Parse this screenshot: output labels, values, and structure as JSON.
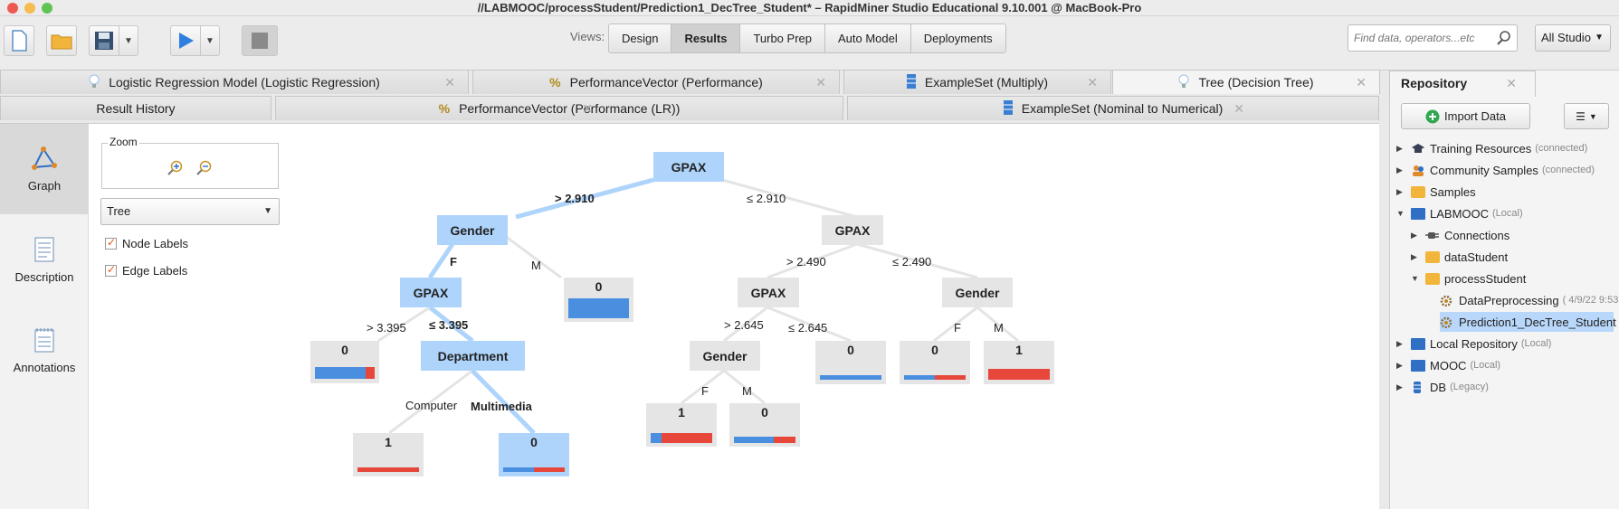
{
  "window": {
    "title": "//LABMOOC/processStudent/Prediction1_DecTree_Student* – RapidMiner Studio Educational 9.10.001 @ MacBook-Pro"
  },
  "toolbar": {
    "views_label": "Views:",
    "views": [
      "Design",
      "Results",
      "Turbo Prep",
      "Auto Model",
      "Deployments"
    ],
    "active_view": "Results",
    "search_placeholder": "Find data, operators...etc",
    "scope": "All Studio"
  },
  "tabs_row1": [
    {
      "label": "Logistic Regression Model (Logistic Regression)",
      "icon": "lightbulb-icon"
    },
    {
      "label": "PerformanceVector (Performance)",
      "icon": "percent-icon"
    },
    {
      "label": "ExampleSet (Multiply)",
      "icon": "table-icon"
    },
    {
      "label": "Tree (Decision Tree)",
      "icon": "lightbulb-icon",
      "active": true
    }
  ],
  "tabs_row2": [
    {
      "label": "Result History",
      "icon": ""
    },
    {
      "label": "PerformanceVector (Performance (LR))",
      "icon": "percent-icon"
    },
    {
      "label": "ExampleSet (Nominal to Numerical)",
      "icon": "table-icon"
    }
  ],
  "sidebar": {
    "items": [
      {
        "label": "Graph",
        "icon": "graph-icon",
        "active": true
      },
      {
        "label": "Description",
        "icon": "description-icon"
      },
      {
        "label": "Annotations",
        "icon": "annotations-icon"
      }
    ]
  },
  "controls": {
    "zoom_label": "Zoom",
    "layout_value": "Tree",
    "node_labels": "Node Labels",
    "edge_labels": "Edge Labels",
    "node_labels_checked": true,
    "edge_labels_checked": true
  },
  "tree": {
    "nodes": {
      "root": "GPAX",
      "n_gender_l": "Gender",
      "n_gpax_r": "GPAX",
      "n_gpax_ll": "GPAX",
      "n_dept": "Department",
      "n_gpax_rl": "GPAX",
      "n_gender_rr": "Gender",
      "n_gender_rll": "Gender"
    },
    "edges": {
      "e_gt2910": "> 2.910",
      "e_le2910": "≤ 2.910",
      "e_f1": "F",
      "e_m1": "M",
      "e_gt2490": "> 2.490",
      "e_le2490": "≤ 2.490",
      "e_gt3395": "> 3.395",
      "e_le3395": "≤ 3.395",
      "e_gt2645": "> 2.645",
      "e_le2645": "≤ 2.645",
      "e_f2": "F",
      "e_m2": "M",
      "e_computer": "Computer",
      "e_multimedia": "Multimedia",
      "e_f3": "F",
      "e_m3": "M"
    },
    "leaves": {
      "l_m0": {
        "label": "0",
        "blue_fraction": 1.0
      },
      "l_3395": {
        "label": "0",
        "blue_fraction": 0.85
      },
      "l_computer": {
        "label": "1",
        "blue_fraction": 0.0
      },
      "l_multimedia": {
        "label": "0",
        "blue_fraction": 0.5
      },
      "l_f1": {
        "label": "1",
        "blue_fraction": 0.18
      },
      "l_m1": {
        "label": "0",
        "blue_fraction": 0.65
      },
      "l_le2645": {
        "label": "0",
        "blue_fraction": 1.0
      },
      "l_gf": {
        "label": "0",
        "blue_fraction": 0.5
      },
      "l_gm": {
        "label": "1",
        "blue_fraction": 0.0
      }
    }
  },
  "repository": {
    "title": "Repository",
    "import_label": "Import Data",
    "items": [
      {
        "label": "Training Resources",
        "sub": "(connected)",
        "icon": "graduation-cap-icon"
      },
      {
        "label": "Community Samples",
        "sub": "(connected)",
        "icon": "people-icon"
      },
      {
        "label": "Samples",
        "sub": "",
        "icon": "folder-icon"
      },
      {
        "label": "LABMOOC",
        "sub": "(Local)",
        "icon": "monitor-icon"
      },
      {
        "label": "Connections",
        "sub": "",
        "icon": "plug-icon"
      },
      {
        "label": "dataStudent",
        "sub": "",
        "icon": "folder-icon"
      },
      {
        "label": "processStudent",
        "sub": "",
        "icon": "folder-icon"
      },
      {
        "label": "DataPreprocessing",
        "sub": "( 4/9/22 9:53",
        "icon": "process-gear-icon"
      },
      {
        "label": "Prediction1_DecTree_Student",
        "sub": "",
        "icon": "process-gear-icon"
      },
      {
        "label": "Local Repository",
        "sub": "(Local)",
        "icon": "monitor-icon"
      },
      {
        "label": "MOOC",
        "sub": "(Local)",
        "icon": "monitor-icon"
      },
      {
        "label": "DB",
        "sub": "(Legacy)",
        "icon": "database-icon"
      }
    ]
  },
  "colors": {
    "class0": "#4a8ee0",
    "class1": "#e6473a",
    "highlight": "#aed4fb"
  }
}
